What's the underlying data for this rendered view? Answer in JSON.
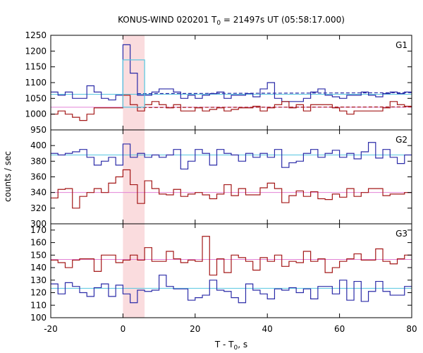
{
  "chart_data": {
    "type": "line",
    "title": "KONUS-WIND 020201 T",
    "title_sub": "0",
    "title_rest": " = 21497s UT (05:58:17.000)",
    "xlabel": "T - T",
    "xlabel_sub": "0",
    "xlabel_rest": ", s",
    "ylabel": "counts / sec",
    "xlim": [
      -20,
      80
    ],
    "x_ticks": [
      -20,
      0,
      20,
      40,
      60,
      80
    ],
    "x_tick_labels": [
      "-20",
      "0",
      "20",
      "40",
      "60",
      "80"
    ],
    "highlight_band": [
      0,
      6
    ],
    "bin_width": 2,
    "x_edges": [
      -20,
      -18,
      -16,
      -14,
      -12,
      -10,
      -8,
      -6,
      -4,
      -2,
      0,
      2,
      4,
      6,
      8,
      10,
      12,
      14,
      16,
      18,
      20,
      22,
      24,
      26,
      28,
      30,
      32,
      34,
      36,
      38,
      40,
      42,
      44,
      46,
      48,
      50,
      52,
      54,
      56,
      58,
      60,
      62,
      64,
      66,
      68,
      70,
      72,
      74,
      76,
      78,
      80
    ],
    "colors": {
      "blue_series": "#2b2ba8",
      "red_series": "#a41818",
      "cyan_line": "#55c6e0",
      "pink_line": "#e383d6",
      "band": "#fadcde",
      "cyan_box": "#55c6e0"
    },
    "panels": [
      {
        "label": "G1",
        "ylim": [
          950,
          1250
        ],
        "y_ticks": [
          950,
          1000,
          1050,
          1100,
          1150,
          1200,
          1250
        ],
        "y_tick_labels": [
          "950",
          "1000",
          "1050",
          "1100",
          "1150",
          "1200",
          "1250"
        ],
        "hlines": [
          {
            "y": 1063,
            "color": "cyan",
            "dashed": false
          },
          {
            "y": 1022,
            "color": "pink",
            "dashed": false
          }
        ],
        "dashed_series_lines": [
          {
            "x": [
              4,
              80
            ],
            "y": [
              1065,
              1068
            ],
            "color": "blue_series"
          },
          {
            "x": [
              4,
              80
            ],
            "y": [
              1021,
              1023
            ],
            "color": "red_series"
          }
        ],
        "boxes": [
          {
            "x": [
              0,
              6
            ],
            "y": [
              1022,
              1172
            ],
            "color": "cyan_box"
          }
        ],
        "series": [
          {
            "color": "blue_series",
            "values": [
              1070,
              1060,
              1070,
              1050,
              1050,
              1090,
              1070,
              1050,
              1045,
              1060,
              1220,
              1130,
              1060,
              1060,
              1070,
              1080,
              1080,
              1070,
              1050,
              1060,
              1050,
              1060,
              1065,
              1070,
              1050,
              1060,
              1060,
              1065,
              1055,
              1080,
              1100,
              1050,
              1040,
              1040,
              1040,
              1050,
              1070,
              1080,
              1060,
              1055,
              1050,
              1060,
              1060,
              1070,
              1060,
              1055,
              1065,
              1070,
              1065,
              1070
            ]
          },
          {
            "color": "red_series",
            "values": [
              1000,
              1010,
              1000,
              990,
              980,
              1000,
              1020,
              1020,
              1020,
              1020,
              1060,
              1030,
              1010,
              1030,
              1040,
              1030,
              1020,
              1030,
              1010,
              1010,
              1020,
              1010,
              1015,
              1020,
              1010,
              1015,
              1020,
              1020,
              1025,
              1010,
              1020,
              1030,
              1040,
              1020,
              1030,
              1010,
              1030,
              1030,
              1030,
              1020,
              1010,
              1000,
              1010,
              1010,
              1010,
              1010,
              1020,
              1040,
              1030,
              1025
            ]
          }
        ]
      },
      {
        "label": "G2",
        "ylim": [
          300,
          420
        ],
        "y_ticks": [
          300,
          320,
          340,
          360,
          380,
          400
        ],
        "y_tick_labels": [
          "300",
          "320",
          "340",
          "360",
          "380",
          "400"
        ],
        "hlines": [
          {
            "y": 388,
            "color": "cyan",
            "dashed": false
          },
          {
            "y": 340,
            "color": "pink",
            "dashed": false
          }
        ],
        "series": [
          {
            "color": "blue_series",
            "values": [
              390,
              388,
              390,
              392,
              395,
              385,
              375,
              380,
              385,
              375,
              402,
              385,
              390,
              385,
              388,
              385,
              388,
              395,
              370,
              380,
              395,
              390,
              375,
              395,
              390,
              388,
              380,
              390,
              385,
              390,
              385,
              395,
              372,
              378,
              380,
              390,
              395,
              385,
              390,
              394,
              385,
              390,
              383,
              392,
              404,
              384,
              395,
              385,
              377,
              388
            ]
          },
          {
            "color": "red_series",
            "values": [
              333,
              344,
              345,
              320,
              335,
              340,
              345,
              340,
              352,
              360,
              369,
              350,
              326,
              355,
              345,
              338,
              337,
              344,
              335,
              338,
              340,
              337,
              332,
              338,
              350,
              336,
              345,
              337,
              337,
              346,
              352,
              345,
              327,
              336,
              342,
              335,
              341,
              332,
              331,
              338,
              334,
              345,
              335,
              340,
              345,
              345,
              336,
              338,
              338,
              340
            ]
          }
        ]
      },
      {
        "label": "G3",
        "ylim": [
          100,
          175
        ],
        "y_ticks": [
          100,
          110,
          120,
          130,
          140,
          150,
          160,
          170
        ],
        "y_tick_labels": [
          "100",
          "110",
          "120",
          "130",
          "140",
          "150",
          "160",
          "170"
        ],
        "hlines": [
          {
            "y": 123.5,
            "color": "cyan",
            "dashed": false
          },
          {
            "y": 146.5,
            "color": "pink",
            "dashed": false
          }
        ],
        "series": [
          {
            "color": "blue_series",
            "values": [
              127,
              119,
              128,
              125,
              120,
              117,
              124,
              127,
              117,
              126,
              119,
              112,
              122,
              121,
              122,
              134,
              125,
              123,
              123,
              114,
              116,
              118,
              130,
              122,
              121,
              116,
              112,
              127,
              122,
              119,
              115,
              123,
              122,
              124,
              120,
              123,
              115,
              125,
              125,
              119,
              130,
              114,
              129,
              113,
              121,
              129,
              121,
              118,
              118,
              125
            ]
          },
          {
            "color": "red_series",
            "values": [
              146,
              144,
              140,
              146,
              147,
              147,
              137,
              150,
              150,
              144,
              146,
              150,
              146,
              156,
              145,
              145,
              153,
              147,
              144,
              146,
              145,
              165,
              134,
              147,
              136,
              150,
              148,
              145,
              138,
              148,
              145,
              150,
              141,
              145,
              144,
              153,
              145,
              147,
              136,
              140,
              145,
              147,
              151,
              146,
              146,
              155,
              145,
              143,
              147,
              150
            ]
          }
        ]
      }
    ]
  }
}
